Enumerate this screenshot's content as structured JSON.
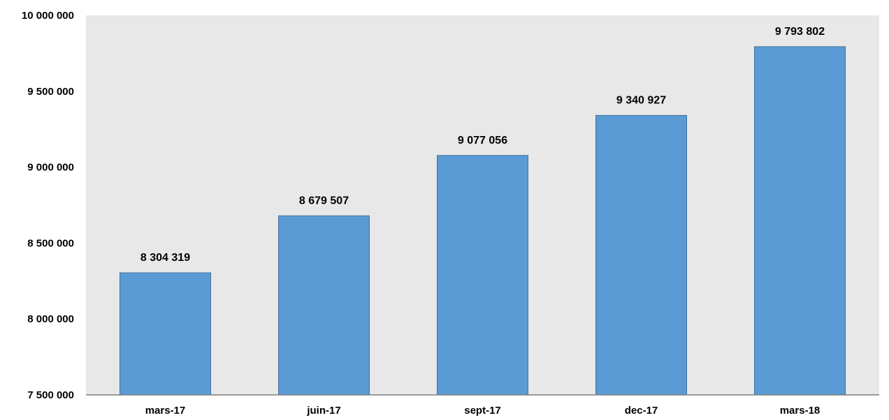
{
  "chart_data": {
    "type": "bar",
    "categories": [
      "mars-17",
      "juin-17",
      "sept-17",
      "dec-17",
      "mars-18"
    ],
    "values": [
      8304319,
      8679507,
      9077056,
      9340927,
      9793802
    ],
    "value_labels": [
      "8 304 319",
      "8 679 507",
      "9 077 056",
      "9 340 927",
      "9 793 802"
    ],
    "title": "",
    "xlabel": "",
    "ylabel": "",
    "ylim": [
      7500000,
      10000000
    ],
    "yticks": [
      7500000,
      8000000,
      8500000,
      9000000,
      9500000,
      10000000
    ],
    "ytick_labels": [
      "7 500 000",
      "8 000 000",
      "8 500 000",
      "9 000 000",
      "9 500 000",
      "10 000 000"
    ],
    "grid": false,
    "legend": "none"
  },
  "colors": {
    "plot_background": "#e8e8e8",
    "bar_fill": "#5b9bd5",
    "bar_stroke": "#41719c",
    "axis": "#7f7f7f",
    "text": "#000000"
  }
}
